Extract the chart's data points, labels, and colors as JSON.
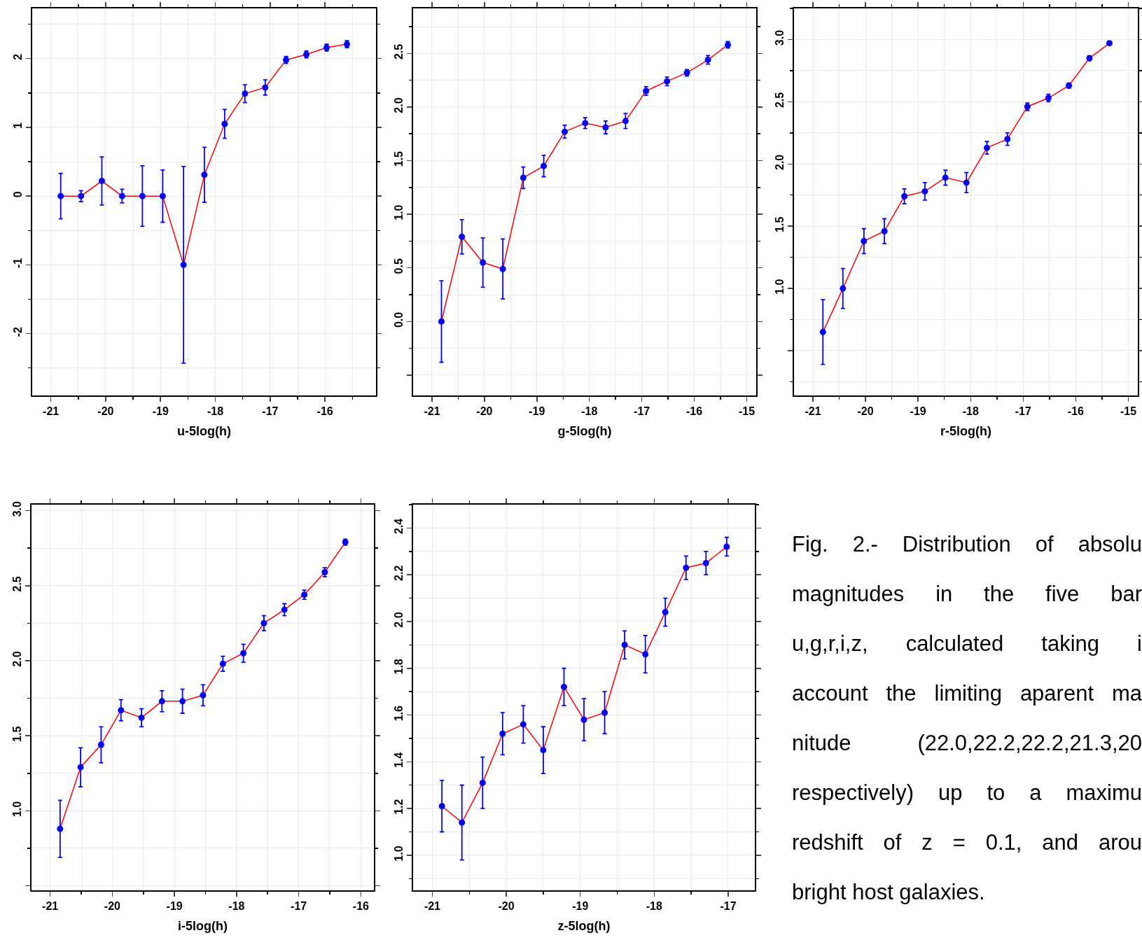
{
  "chart_data": [
    {
      "type": "line",
      "xlabel": "u-5log(h)",
      "grid": true,
      "marker": "circle",
      "color": "#ff0000",
      "colors": [
        "#0000ff",
        "#0000ff",
        "#0000ff",
        "#0000ff",
        "#0000ff",
        "#0000ff",
        "#0000ff",
        "#0000ff",
        "#0000ff",
        "#0000ff",
        "#0000ff",
        "#0000ff",
        "#0000ff",
        "#0000ff",
        "#0000ff"
      ],
      "x": [
        -20.82,
        -20.45,
        -20.07,
        -19.7,
        -19.33,
        -18.96,
        -18.58,
        -18.2,
        -17.83,
        -17.46,
        -17.09,
        -16.71,
        -16.34,
        -15.97,
        -15.6
      ],
      "values": [
        0,
        0,
        0.22,
        0,
        0,
        0,
        -1.0,
        0.31,
        1.05,
        1.49,
        1.58,
        1.98,
        2.06,
        2.16,
        2.21
      ],
      "errors": [
        0.33,
        0.08,
        0.35,
        0.1,
        0.44,
        0.38,
        1.43,
        0.4,
        0.21,
        0.13,
        0.11,
        0.05,
        0.05,
        0.05,
        0.05
      ],
      "xlim": [
        -21.34,
        -15.07
      ],
      "ylim": [
        -2.9,
        2.73
      ],
      "xticks": [
        -21,
        -20,
        -19,
        -18,
        -17,
        -16
      ],
      "yticks": [
        -2,
        -1,
        0,
        1,
        2
      ]
    },
    {
      "type": "line",
      "xlabel": "g-5log(h)",
      "grid": true,
      "marker": "circle",
      "color": "#ff0000",
      "colors": [
        "#0000ff",
        "#0000ff",
        "#0000ff",
        "#0000ff",
        "#0000ff",
        "#0000ff",
        "#0000ff",
        "#0000ff",
        "#0000ff",
        "#0000ff",
        "#0000ff",
        "#0000ff",
        "#0000ff",
        "#0000ff",
        "#0000ff"
      ],
      "x": [
        -20.82,
        -20.43,
        -20.03,
        -19.65,
        -19.26,
        -18.87,
        -18.47,
        -18.08,
        -17.69,
        -17.31,
        -16.92,
        -16.52,
        -16.14,
        -15.74,
        -15.36
      ],
      "values": [
        0.0,
        0.79,
        0.55,
        0.49,
        1.34,
        1.45,
        1.77,
        1.85,
        1.81,
        1.87,
        2.15,
        2.24,
        2.32,
        2.44,
        2.58
      ],
      "errors": [
        0.38,
        0.16,
        0.23,
        0.28,
        0.1,
        0.1,
        0.06,
        0.05,
        0.06,
        0.07,
        0.04,
        0.04,
        0.03,
        0.04,
        0.03
      ],
      "xlim": [
        -21.36,
        -14.82
      ],
      "ylim": [
        -0.69,
        2.92
      ],
      "xticks": [
        -21,
        -20,
        -19,
        -18,
        -17,
        -16,
        -15
      ],
      "yticks": [
        {
          "value": -0.5,
          "label": null
        },
        {
          "value": 0,
          "label": "0.0"
        },
        0.5,
        {
          "value": 1,
          "label": "1.0"
        },
        1.5,
        {
          "value": 2,
          "label": "2.0"
        },
        2.5
      ]
    },
    {
      "type": "line",
      "xlabel": "r-5log(h)",
      "grid": true,
      "marker": "circle",
      "color": "#ff0000",
      "colors": [
        "#0000ff",
        "#0000ff",
        "#0000ff",
        "#0000ff",
        "#0000ff",
        "#0000ff",
        "#0000ff",
        "#0000ff",
        "#0000ff",
        "#0000ff",
        "#0000ff",
        "#0000ff",
        "#0000ff",
        "#0000ff",
        "#0000ff"
      ],
      "x": [
        -20.81,
        -20.43,
        -20.03,
        -19.64,
        -19.26,
        -18.87,
        -18.48,
        -18.08,
        -17.69,
        -17.3,
        -16.92,
        -16.52,
        -16.13,
        -15.74,
        -15.36
      ],
      "values": [
        0.65,
        1.0,
        1.38,
        1.46,
        1.74,
        1.78,
        1.89,
        1.85,
        2.13,
        2.2,
        2.46,
        2.53,
        2.63,
        2.85,
        2.97
      ],
      "errors": [
        0.26,
        0.16,
        0.1,
        0.1,
        0.06,
        0.07,
        0.06,
        0.08,
        0.05,
        0.05,
        0.03,
        0.03,
        0.02,
        0.02,
        0.01
      ],
      "xlim": [
        -21.36,
        -14.82
      ],
      "ylim": [
        0.14,
        3.25
      ],
      "xticks": [
        -21,
        -20,
        -19,
        -18,
        -17,
        -16,
        -15
      ],
      "yticks": [
        {
          "value": 0.5,
          "label": null
        },
        {
          "value": 1,
          "label": "1.0"
        },
        1.5,
        {
          "value": 2,
          "label": "2.0"
        },
        2.5,
        {
          "value": 3,
          "label": "3.0"
        }
      ]
    },
    {
      "type": "line",
      "xlabel": "i-5log(h)",
      "grid": true,
      "marker": "circle",
      "color": "#ff0000",
      "colors": [
        "#0000ff",
        "#0000ff",
        "#0000ff",
        "#0000ff",
        "#0000ff",
        "#0000ff",
        "#0000ff",
        "#0000ff",
        "#0000ff",
        "#0000ff",
        "#0000ff",
        "#0000ff",
        "#0000ff",
        "#0000ff",
        "#0000ff"
      ],
      "x": [
        -20.84,
        -20.51,
        -20.18,
        -19.86,
        -19.53,
        -19.2,
        -18.87,
        -18.54,
        -18.22,
        -17.89,
        -17.56,
        -17.23,
        -16.91,
        -16.58,
        -16.25
      ],
      "values": [
        0.88,
        1.29,
        1.44,
        1.67,
        1.62,
        1.73,
        1.73,
        1.77,
        1.98,
        2.05,
        2.25,
        2.34,
        2.44,
        2.59,
        2.79
      ],
      "errors": [
        0.19,
        0.13,
        0.12,
        0.07,
        0.06,
        0.07,
        0.08,
        0.07,
        0.05,
        0.06,
        0.05,
        0.04,
        0.03,
        0.03,
        0.02
      ],
      "xlim": [
        -21.3,
        -15.79
      ],
      "ylim": [
        0.47,
        3.04
      ],
      "xticks": [
        -21,
        -20,
        -19,
        -18,
        -17,
        -16
      ],
      "yticks": [
        {
          "value": 0.5,
          "label": null
        },
        {
          "value": 1,
          "label": "1.0"
        },
        1.5,
        {
          "value": 2,
          "label": "2.0"
        },
        2.5,
        {
          "value": 3,
          "label": "3.0"
        }
      ]
    },
    {
      "type": "line",
      "xlabel": "z-5log(h)",
      "grid": true,
      "marker": "circle",
      "color": "#ff0000",
      "colors": [
        "#0000ff",
        "#0000ff",
        "#0000ff",
        "#0000ff",
        "#0000ff",
        "#0000ff",
        "#0000ff",
        "#0000ff",
        "#0000ff",
        "#0000ff",
        "#0000ff",
        "#0000ff",
        "#0000ff",
        "#0000ff",
        "#0000ff"
      ],
      "x": [
        -20.87,
        -20.6,
        -20.32,
        -20.05,
        -19.77,
        -19.5,
        -19.22,
        -18.95,
        -18.67,
        -18.4,
        -18.12,
        -17.85,
        -17.57,
        -17.3,
        -17.02
      ],
      "values": [
        1.21,
        1.14,
        1.31,
        1.52,
        1.56,
        1.45,
        1.72,
        1.58,
        1.61,
        1.9,
        1.86,
        2.04,
        2.23,
        2.25,
        2.32
      ],
      "errors": [
        0.11,
        0.16,
        0.11,
        0.09,
        0.08,
        0.1,
        0.08,
        0.09,
        0.09,
        0.06,
        0.08,
        0.06,
        0.05,
        0.05,
        0.04
      ],
      "xlim": [
        -21.26,
        -16.64
      ],
      "ylim": [
        0.85,
        2.5
      ],
      "xticks": [
        -21,
        -20,
        -19,
        -18,
        -17
      ],
      "yticks": [
        {
          "value": 1,
          "label": "1.0"
        },
        1.2,
        1.4,
        1.6,
        1.8,
        {
          "value": 2,
          "label": "2.0"
        },
        2.2,
        2.4
      ]
    },
    {
      "type": "other",
      "annotations": [
        "Fig. 2.- Distribution of absolu",
        "magnitudes in the five bar",
        "u,g,r,i,z, calculated taking i",
        "account the limiting aparent ma",
        "nitude (22.0,22.2,22.2,21.3,20",
        "respectively) up to a maximu",
        "redshift of z = 0.1, and arou",
        "bright host galaxies."
      ]
    }
  ]
}
